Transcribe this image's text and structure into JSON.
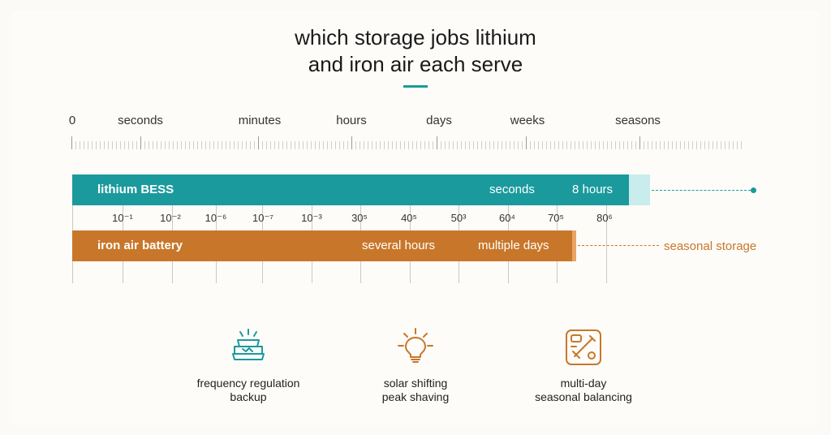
{
  "title": {
    "line1": "which storage jobs lithium",
    "line2": "and iron air each serve"
  },
  "scale": {
    "labels": [
      "0",
      "seconds",
      "minutes",
      "hours",
      "days",
      "weeks",
      "seasons"
    ]
  },
  "lithium": {
    "name": "lithium BESS",
    "label_a": "seconds",
    "label_b": "8 hours",
    "color": "#1b9a9d"
  },
  "exponents": [
    "10⁻¹",
    "10⁻²",
    "10⁻⁶",
    "10⁻⁷",
    "10⁻³",
    "30⁵",
    "40⁵",
    "50³",
    "60⁴",
    "70⁵",
    "80⁶"
  ],
  "iron": {
    "name": "iron air battery",
    "label_a": "several hours",
    "label_b": "multiple days",
    "extension_label": "seasonal storage",
    "color": "#c8772a"
  },
  "use_cases": [
    {
      "icon": "frequency-icon",
      "line1": "frequency regulation",
      "line2": "backup"
    },
    {
      "icon": "sun-bulb-icon",
      "line1": "solar shifting",
      "line2": "peak shaving"
    },
    {
      "icon": "tools-icon",
      "line1": "multi-day",
      "line2": "seasonal balancing"
    }
  ]
}
